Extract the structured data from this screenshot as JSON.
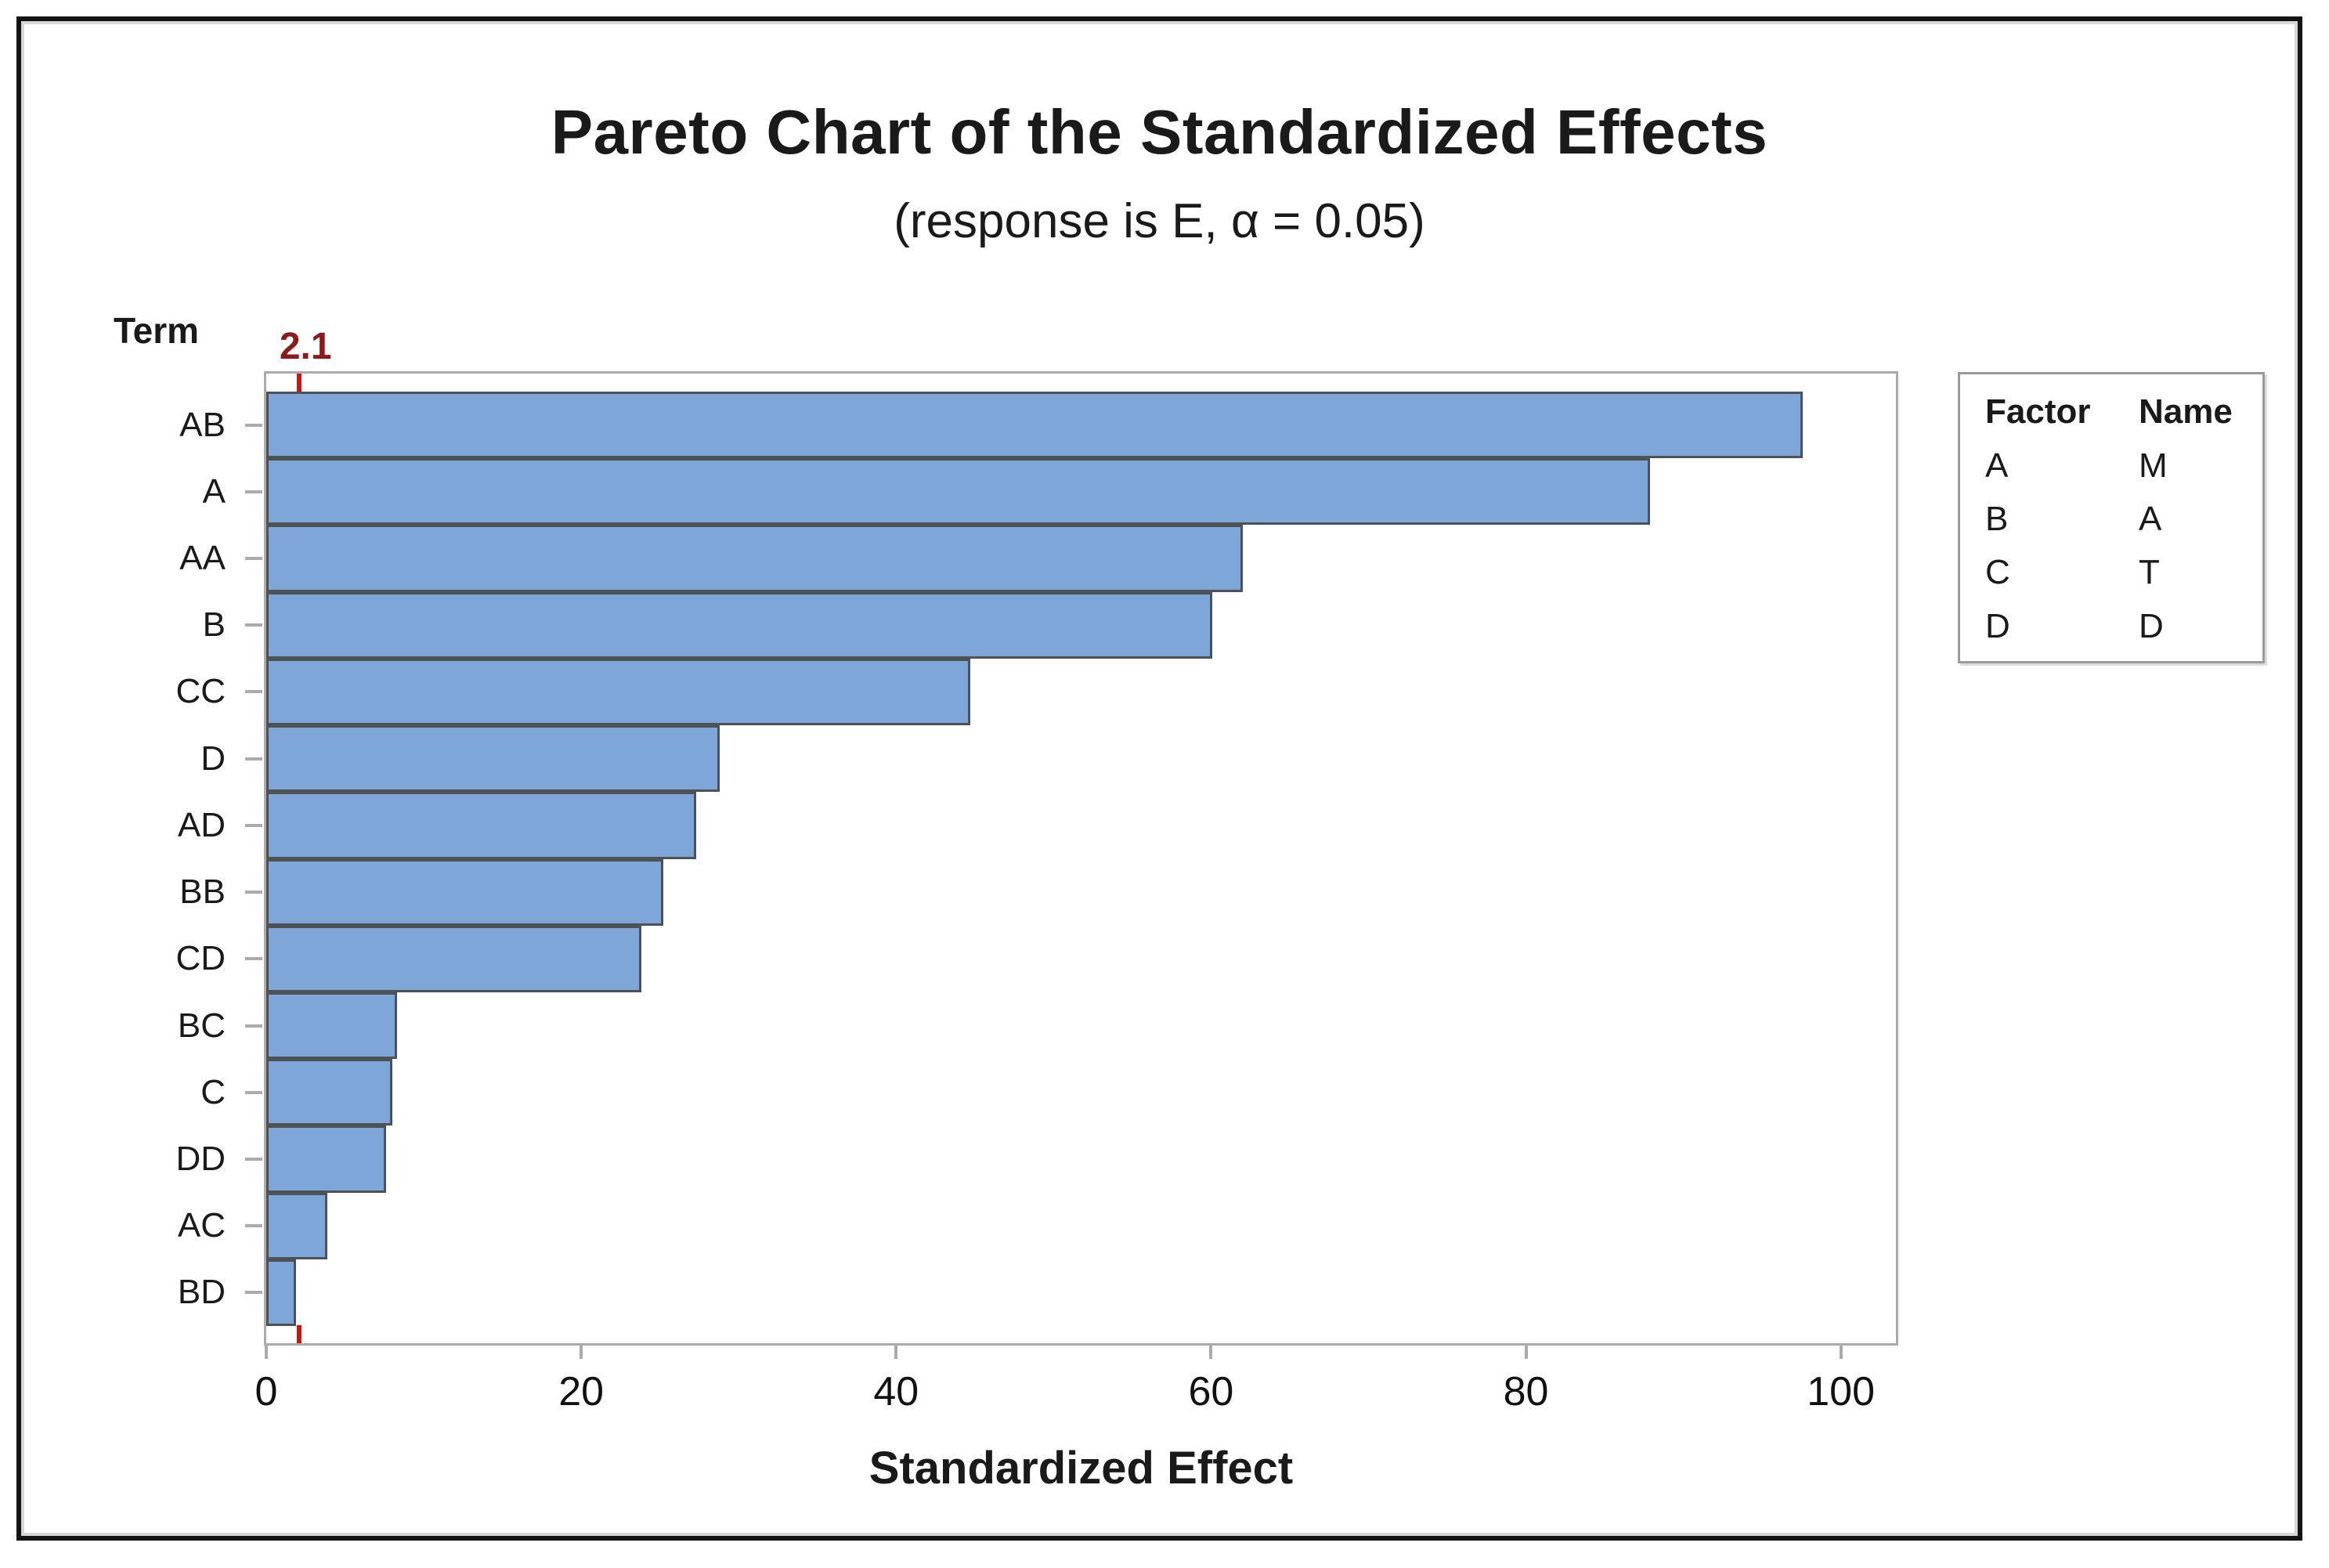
{
  "chart_data": {
    "type": "bar",
    "orientation": "horizontal",
    "title": "Pareto Chart of the Standardized Effects",
    "subtitle": "(response is E, α = 0.05)",
    "xlabel": "Standardized Effect",
    "ylabel": "Term",
    "categories": [
      "AB",
      "A",
      "AA",
      "B",
      "CC",
      "D",
      "AD",
      "BB",
      "CD",
      "BC",
      "C",
      "DD",
      "AC",
      "BD"
    ],
    "values": [
      97.6,
      87.9,
      62.0,
      60.1,
      44.7,
      28.8,
      27.3,
      25.2,
      23.8,
      8.3,
      8.0,
      7.6,
      3.9,
      1.9
    ],
    "xticks": [
      0,
      20,
      40,
      60,
      80,
      100
    ],
    "xlim": [
      0,
      103.5
    ],
    "grid": false,
    "legend_position": "top-right",
    "reference_line": {
      "value": 2.1,
      "label": "2.1"
    },
    "legend": {
      "headers": [
        "Factor",
        "Name"
      ],
      "rows": [
        [
          "A",
          "M"
        ],
        [
          "B",
          "A"
        ],
        [
          "C",
          "T"
        ],
        [
          "D",
          "D"
        ]
      ]
    },
    "colors": {
      "bar_fill": "#7EA6D8",
      "bar_border": "#4F5255",
      "axis": "#ABABAB",
      "reference_line": "#CC1414",
      "reference_label": "#8B1A1A",
      "text": "#1A1A1A"
    }
  }
}
